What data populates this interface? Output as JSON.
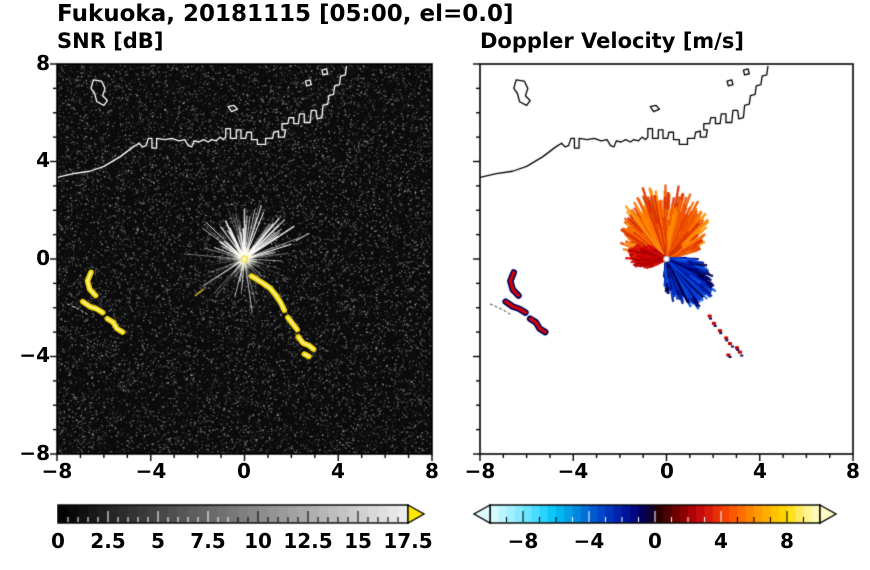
{
  "title": "Fukuoka, 20181115 [05:00, el=0.0]",
  "panels": {
    "snr": {
      "title": "SNR [dB]"
    },
    "velocity": {
      "title": "Doppler Velocity [m/s]"
    }
  },
  "axes": {
    "xtick_labels": [
      "−8",
      "−4",
      "0",
      "4",
      "8"
    ],
    "ytick_labels": [
      "8",
      "4",
      "0",
      "−4",
      "−8"
    ],
    "xlim": [
      -8,
      8
    ],
    "ylim": [
      -8,
      8
    ]
  },
  "colorbars": {
    "snr": {
      "tick_labels": [
        "0",
        "2.5",
        "5",
        "7.5",
        "10",
        "12.5",
        "15",
        "17.5"
      ],
      "vmin": 0,
      "vmax": 17.5,
      "over_color": "#ffe800",
      "stops": [
        [
          0,
          "#000000"
        ],
        [
          1,
          "#f0f0f0"
        ]
      ]
    },
    "velocity": {
      "tick_labels": [
        "−8",
        "−4",
        "0",
        "4",
        "8"
      ],
      "vmin": -10,
      "vmax": 10,
      "stops": [
        [
          0,
          "#e0fbff"
        ],
        [
          0.05,
          "#b0f2ff"
        ],
        [
          0.1,
          "#78e8ff"
        ],
        [
          0.15,
          "#38d8ff"
        ],
        [
          0.2,
          "#00c0f4"
        ],
        [
          0.25,
          "#0094e4"
        ],
        [
          0.3,
          "#0064d4"
        ],
        [
          0.35,
          "#003cc4"
        ],
        [
          0.4,
          "#001aa4"
        ],
        [
          0.45,
          "#000074"
        ],
        [
          0.49,
          "#100028"
        ],
        [
          0.5,
          "#1c0000"
        ],
        [
          0.55,
          "#5c0000"
        ],
        [
          0.6,
          "#a00000"
        ],
        [
          0.65,
          "#d01010"
        ],
        [
          0.7,
          "#f03800"
        ],
        [
          0.75,
          "#ff6400"
        ],
        [
          0.8,
          "#ff9000"
        ],
        [
          0.85,
          "#ffb800"
        ],
        [
          0.9,
          "#ffdc00"
        ],
        [
          0.95,
          "#fff080"
        ],
        [
          1,
          "#fffcc8"
        ]
      ]
    }
  },
  "chart_data": [
    {
      "type": "heatmap",
      "panel": "snr",
      "title": "SNR [dB]",
      "xlim": [
        -8,
        8
      ],
      "ylim": [
        -8,
        8
      ],
      "xticks": [
        -8,
        -4,
        0,
        4,
        8
      ],
      "yticks": [
        -8,
        -4,
        0,
        4,
        8
      ],
      "units": "dB",
      "colorbar": {
        "vmin": 0,
        "vmax": 17.5,
        "tick_values": [
          0,
          2.5,
          5,
          7.5,
          10,
          12.5,
          15,
          17.5
        ],
        "colormap": "grayscale black to white",
        "over_arrow_color": "#ffe800"
      },
      "background": "speckled receiver noise ~0-3 dB over entire black domain",
      "features": [
        {
          "name": "ground-clutter-spokes",
          "center": [
            0,
            0
          ],
          "max_radius": 2.7,
          "description": "bright radial spokes emanating from radar at origin"
        },
        {
          "name": "high-snr-arc-southeast",
          "value": "15-17.5+ dB saturated yellow",
          "polylines": [
            [
              [
                0.3,
                -0.7
              ],
              [
                0.55,
                -0.85
              ],
              [
                0.8,
                -1.0
              ],
              [
                1.1,
                -1.2
              ],
              [
                1.35,
                -1.5
              ],
              [
                1.55,
                -1.8
              ],
              [
                1.7,
                -2.1
              ]
            ],
            [
              [
                1.85,
                -2.4
              ],
              [
                2.05,
                -2.65
              ],
              [
                2.25,
                -2.9
              ]
            ],
            [
              [
                2.3,
                -3.2
              ],
              [
                2.5,
                -3.45
              ],
              [
                2.75,
                -3.55
              ],
              [
                2.95,
                -3.7
              ]
            ],
            [
              [
                2.55,
                -3.9
              ],
              [
                2.75,
                -4.0
              ]
            ]
          ]
        },
        {
          "name": "high-snr-arcs-west",
          "value": "15-17.5+ dB saturated yellow",
          "polylines": [
            [
              [
                -6.55,
                -0.55
              ],
              [
                -6.7,
                -0.9
              ],
              [
                -6.6,
                -1.25
              ],
              [
                -6.35,
                -1.5
              ]
            ],
            [
              [
                -6.9,
                -1.75
              ],
              [
                -6.6,
                -1.95
              ],
              [
                -6.3,
                -2.05
              ],
              [
                -6.05,
                -2.2
              ]
            ],
            [
              [
                -5.85,
                -2.45
              ],
              [
                -5.6,
                -2.6
              ],
              [
                -5.45,
                -2.85
              ],
              [
                -5.2,
                -3.0
              ]
            ]
          ]
        },
        {
          "name": "dotted-line-west",
          "polyline": [
            [
              -7.55,
              -1.85
            ],
            [
              -7.2,
              -2.0
            ],
            [
              -6.9,
              -2.15
            ],
            [
              -6.65,
              -2.3
            ]
          ]
        },
        {
          "name": "faint-streaks",
          "polylines": [
            [
              [
                2.2,
                0.75
              ],
              [
                2.75,
                1.05
              ]
            ],
            [
              [
                -2.1,
                -1.5
              ],
              [
                -1.75,
                -1.25
              ]
            ]
          ]
        }
      ]
    },
    {
      "type": "heatmap",
      "panel": "velocity",
      "title": "Doppler Velocity [m/s]",
      "xlim": [
        -8,
        8
      ],
      "ylim": [
        -8,
        8
      ],
      "xticks": [
        -8,
        -4,
        0,
        4,
        8
      ],
      "yticks": [
        -8,
        -4,
        0,
        4,
        8
      ],
      "units": "m/s",
      "colorbar": {
        "vmin": -10,
        "vmax": 10,
        "tick_values": [
          -8,
          -4,
          0,
          4,
          8
        ],
        "colormap": "cyan-blue-navy-black-red-orange-yellow diverging"
      },
      "features": [
        {
          "name": "positive-velocity-fan",
          "angle_deg": [
            15,
            178
          ],
          "max_radius": 2.7,
          "value": "+3 to +9 m/s",
          "description": "orange/red fan north of radar"
        },
        {
          "name": "west-red-streak",
          "angle_deg": [
            140,
            208
          ],
          "max_radius": 1.5,
          "value": "+1 to +4 m/s"
        },
        {
          "name": "negative-velocity-fan",
          "angle_deg": [
            -97,
            3
          ],
          "max_radius": 2.2,
          "value": "-3 to -9 m/s",
          "description": "blue fan southeast of radar"
        },
        {
          "name": "west-arcs",
          "description": "red arcs with dark navy fringes at same location as SNR west arcs"
        },
        {
          "name": "southeast-specks",
          "points": [
            [
              1.78,
              -2.32
            ],
            [
              1.98,
              -2.62
            ],
            [
              2.22,
              -2.92
            ],
            [
              2.48,
              -3.22
            ],
            [
              2.72,
              -3.45
            ],
            [
              2.95,
              -3.62
            ],
            [
              3.12,
              -3.8
            ],
            [
              2.62,
              -3.92
            ]
          ]
        },
        {
          "name": "dotted-line-west",
          "polyline": [
            [
              -7.55,
              -1.85
            ],
            [
              -7.2,
              -2.0
            ],
            [
              -6.9,
              -2.15
            ],
            [
              -6.65,
              -2.3
            ]
          ]
        }
      ]
    }
  ],
  "map": {
    "coast_main": [
      [
        -8,
        3.35
      ],
      [
        -7.3,
        3.5
      ],
      [
        -6.6,
        3.6
      ],
      [
        -6,
        3.8
      ],
      [
        -5.3,
        4.2
      ],
      [
        -4.75,
        4.6
      ],
      [
        -4.5,
        4.75
      ],
      [
        -4.35,
        4.6
      ],
      [
        -4.2,
        4.65
      ],
      [
        -4.1,
        4.95
      ],
      [
        -3.95,
        4.95
      ],
      [
        -3.95,
        4.55
      ],
      [
        -3.75,
        4.55
      ],
      [
        -3.75,
        4.95
      ],
      [
        -3.4,
        4.9
      ],
      [
        -3.1,
        4.95
      ],
      [
        -2.8,
        4.85
      ],
      [
        -2.55,
        4.9
      ],
      [
        -2.4,
        4.65
      ],
      [
        -2.25,
        4.6
      ],
      [
        -2.15,
        4.85
      ],
      [
        -1.95,
        4.8
      ],
      [
        -1.75,
        4.9
      ],
      [
        -1.55,
        4.8
      ],
      [
        -1.4,
        4.9
      ],
      [
        -1.2,
        4.85
      ],
      [
        -1.05,
        5
      ],
      [
        -0.9,
        4.9
      ],
      [
        -0.8,
        5
      ],
      [
        -0.8,
        5.35
      ],
      [
        -0.6,
        5.35
      ],
      [
        -0.6,
        4.95
      ],
      [
        -0.35,
        4.95
      ],
      [
        -0.35,
        5.3
      ],
      [
        -0.15,
        5.3
      ],
      [
        -0.15,
        4.95
      ],
      [
        0.05,
        4.95
      ],
      [
        0.1,
        5.2
      ],
      [
        0.3,
        5.2
      ],
      [
        0.3,
        4.9
      ],
      [
        0.55,
        4.9
      ],
      [
        0.55,
        4.7
      ],
      [
        0.9,
        4.7
      ],
      [
        0.9,
        4.95
      ],
      [
        1.2,
        4.95
      ],
      [
        1.25,
        5.2
      ],
      [
        1.45,
        5.25
      ],
      [
        1.45,
        5
      ],
      [
        1.7,
        5
      ],
      [
        1.75,
        5.3
      ],
      [
        1.6,
        5.3
      ],
      [
        1.6,
        5.55
      ],
      [
        1.85,
        5.55
      ],
      [
        1.9,
        5.8
      ],
      [
        2.1,
        5.8
      ],
      [
        2.1,
        5.55
      ],
      [
        2.3,
        5.55
      ],
      [
        2.35,
        5.95
      ],
      [
        2.55,
        5.95
      ],
      [
        2.55,
        5.6
      ],
      [
        2.8,
        5.6
      ],
      [
        2.85,
        6.1
      ],
      [
        3.05,
        6.1
      ],
      [
        3.1,
        5.75
      ],
      [
        3.3,
        5.8
      ],
      [
        3.35,
        6.3
      ],
      [
        3.55,
        6.35
      ],
      [
        3.6,
        6.7
      ],
      [
        3.8,
        6.75
      ],
      [
        3.85,
        7.1
      ],
      [
        4.05,
        7.15
      ],
      [
        4.1,
        7.5
      ],
      [
        4.3,
        7.55
      ],
      [
        4.35,
        7.9
      ]
    ],
    "islands": [
      [
        [
          -6.45,
          7.35
        ],
        [
          -6.1,
          7.3
        ],
        [
          -5.95,
          7
        ],
        [
          -6.05,
          6.7
        ],
        [
          -5.85,
          6.5
        ],
        [
          -6,
          6.3
        ],
        [
          -6.3,
          6.45
        ],
        [
          -6.4,
          6.8
        ],
        [
          -6.55,
          7
        ]
      ],
      [
        [
          -0.7,
          6.25
        ],
        [
          -0.45,
          6.3
        ],
        [
          -0.3,
          6.15
        ],
        [
          -0.55,
          6.05
        ]
      ],
      [
        [
          3.3,
          7.75
        ],
        [
          3.5,
          7.8
        ],
        [
          3.55,
          7.6
        ],
        [
          3.35,
          7.55
        ]
      ],
      [
        [
          2.6,
          7.3
        ],
        [
          2.8,
          7.35
        ],
        [
          2.85,
          7.15
        ],
        [
          2.65,
          7.1
        ]
      ]
    ]
  },
  "render": {
    "snr": {
      "background": "#0b0b0b",
      "noise_count": 26000,
      "noise_seed": 9,
      "spoke_seed": 5,
      "spoke_count": 170,
      "bright_spoke_count": 18,
      "arc_color": "#f5d800",
      "arc_core": "#fffacd",
      "center_dot": "#fff6b0"
    },
    "velocity": {
      "fans": [
        {
          "seed": 11,
          "count": 950,
          "a0": 15,
          "a1": 178,
          "rmin": 0.1,
          "rmax": 2.7,
          "colors": [
            "#e84000",
            "#f05800",
            "#ff7000",
            "#ff8c00",
            "#d83000",
            "#ff9c20"
          ]
        },
        {
          "seed": 21,
          "count": 420,
          "a0": 140,
          "a1": 208,
          "rmin": 0.05,
          "rmax": 1.5,
          "colors": [
            "#c00000",
            "#d81010",
            "#a80000",
            "#e82800"
          ]
        },
        {
          "seed": 31,
          "count": 820,
          "a0": -97,
          "a1": 3,
          "rmin": 0.1,
          "rmax": 2.2,
          "colors": [
            "#0030c8",
            "#0048e0",
            "#0018a0",
            "#000070",
            "#1058e8",
            "#000048"
          ]
        }
      ],
      "arc_fringe": "#000060",
      "arc_main": "#d80000",
      "speck_colors": [
        "#c00000",
        "#000060"
      ]
    }
  }
}
